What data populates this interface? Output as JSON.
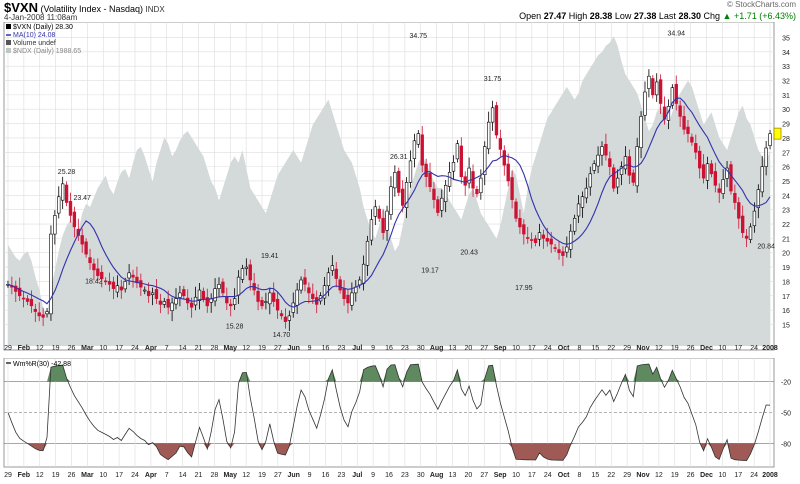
{
  "header": {
    "symbol": "$VXN",
    "name": "(Volatility Index - Nasdaq)",
    "exchange": "INDX",
    "date": "4-Jan-2008 11:08am",
    "open_label": "Open",
    "open": "27.47",
    "high_label": "High",
    "high": "28.38",
    "low_label": "Low",
    "low": "27.38",
    "last_label": "Last",
    "last": "28.30",
    "chg_label": "Chg",
    "chg": "+1.71 (+6.43%)",
    "chg_arrow": "▲",
    "credit": "© StockCharts.com"
  },
  "legend": {
    "price": "$VXN (Daily) 28.30",
    "ma": "MA(10) 24.08",
    "volume": "Volume undef",
    "ndx": "$NDX (Daily) 1988.65",
    "indicator": "Wm%R(30) -42.88"
  },
  "colors": {
    "up": "#000000",
    "down": "#cc1133",
    "ma": "#3333aa",
    "ndx_fill": "#d4d9d9",
    "overbought_fill": "#5f8a60",
    "oversold_fill": "#a05a55",
    "grid": "#dddddd",
    "current_marker": "#ffff00"
  },
  "chart_data": [
    {
      "type": "candlestick",
      "title": "$VXN (Volatility Index - Nasdaq)",
      "ylim": [
        13.5,
        35.8
      ],
      "y_ticks": [
        15,
        16,
        17,
        18,
        19,
        20,
        21,
        22,
        23,
        24,
        25,
        26,
        27,
        28,
        29,
        30,
        31,
        32,
        33,
        34,
        35
      ],
      "x_tick_labels": [
        "29",
        "Feb",
        "12",
        "19",
        "26",
        "Mar",
        "10",
        "17",
        "24",
        "Apr",
        "7",
        "14",
        "21",
        "28",
        "May",
        "12",
        "19",
        "27",
        "Jun",
        "9",
        "16",
        "23",
        "Jul",
        "9",
        "16",
        "23",
        "30",
        "Aug",
        "13",
        "20",
        "27",
        "Sep",
        "10",
        "17",
        "24",
        "Oct",
        "8",
        "15",
        "22",
        "29",
        "Nov",
        "12",
        "19",
        "26",
        "Dec",
        "10",
        "17",
        "24",
        "2008"
      ],
      "annotations": [
        {
          "label": "25.28",
          "value": 25.28
        },
        {
          "label": "23.47",
          "value": 23.47
        },
        {
          "label": "18.42",
          "value": 18.42
        },
        {
          "label": "19.41",
          "value": 19.41
        },
        {
          "label": "15.28",
          "value": 15.28
        },
        {
          "label": "14.70",
          "value": 14.7
        },
        {
          "label": "26.31",
          "value": 26.31
        },
        {
          "label": "34.75",
          "value": 34.75
        },
        {
          "label": "19.17",
          "value": 19.17
        },
        {
          "label": "20.43",
          "value": 20.43
        },
        {
          "label": "31.75",
          "value": 31.75
        },
        {
          "label": "17.95",
          "value": 17.95
        },
        {
          "label": "34.94",
          "value": 34.94
        },
        {
          "label": "20.84",
          "value": 20.84
        }
      ],
      "close_series": [
        17.8,
        17.6,
        17.3,
        17.0,
        16.8,
        16.6,
        16.3,
        15.9,
        15.6,
        15.5,
        15.9,
        21.3,
        22.6,
        23.9,
        24.8,
        23.5,
        22.6,
        21.8,
        21.2,
        20.6,
        19.9,
        19.3,
        18.8,
        18.4,
        18.2,
        18.0,
        17.8,
        17.5,
        17.7,
        17.4,
        18.0,
        18.6,
        18.3,
        17.9,
        17.6,
        17.4,
        17.0,
        17.2,
        16.8,
        16.4,
        16.6,
        16.2,
        16.5,
        16.8,
        17.2,
        17.0,
        16.5,
        16.2,
        16.9,
        17.4,
        16.8,
        16.3,
        16.8,
        17.5,
        17.8,
        17.2,
        16.5,
        16.3,
        16.8,
        18.3,
        18.9,
        19.0,
        18.1,
        17.4,
        16.6,
        16.3,
        16.6,
        17.2,
        16.6,
        16.0,
        15.6,
        15.2,
        15.6,
        16.5,
        17.4,
        18.1,
        17.8,
        17.2,
        16.8,
        16.4,
        17.0,
        17.7,
        18.6,
        19.1,
        18.2,
        17.4,
        16.8,
        16.5,
        17.2,
        17.6,
        18.1,
        19.2,
        20.8,
        22.3,
        23.2,
        22.4,
        21.4,
        22.9,
        24.6,
        25.6,
        24.2,
        23.3,
        24.9,
        26.4,
        27.8,
        28.3,
        26.1,
        25.3,
        24.6,
        23.7,
        22.8,
        23.8,
        24.7,
        25.6,
        26.3,
        27.6,
        25.3,
        24.7,
        25.9,
        24.5,
        24.1,
        25.2,
        27.4,
        29.1,
        30.1,
        28.2,
        27.2,
        26.1,
        25.0,
        23.7,
        22.4,
        21.8,
        21.3,
        21.0,
        20.9,
        20.7,
        21.4,
        21.0,
        20.8,
        20.6,
        20.3,
        20.0,
        19.8,
        20.4,
        21.5,
        22.4,
        23.4,
        23.9,
        24.5,
        25.5,
        26.2,
        26.8,
        27.4,
        26.8,
        26.0,
        24.5,
        25.2,
        26.0,
        26.7,
        25.4,
        24.9,
        27.4,
        29.5,
        31.2,
        32.3,
        31.0,
        31.9,
        30.4,
        29.3,
        30.2,
        31.5,
        30.4,
        29.5,
        28.6,
        28.3,
        27.7,
        27.0,
        25.9,
        25.2,
        26.2,
        25.5,
        24.7,
        24.2,
        25.1,
        25.9,
        24.3,
        23.5,
        22.4,
        21.4,
        21.0,
        21.8,
        22.9,
        24.4,
        26.0,
        27.3,
        28.3
      ]
    },
    {
      "type": "line",
      "title": "Wm%R(30)",
      "ylim": [
        -100,
        0
      ],
      "y_ticks": [
        -20,
        -50,
        -80
      ],
      "overbought": -20,
      "oversold": -80,
      "midline": -50,
      "last_value": -42.88
    }
  ]
}
